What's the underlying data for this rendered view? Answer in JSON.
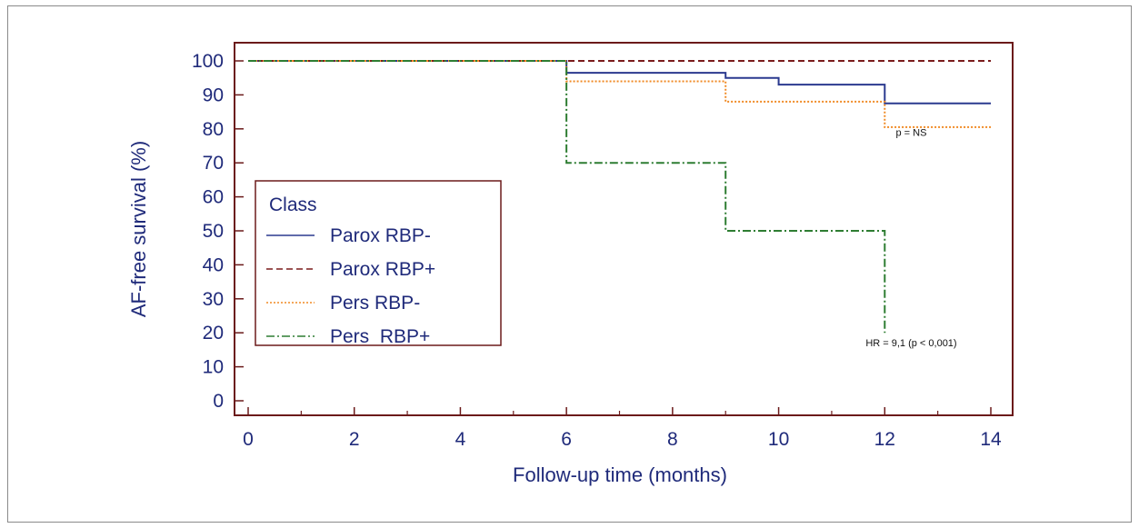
{
  "chart_data": {
    "type": "line",
    "subtype": "step",
    "xlabel": "Follow-up time (months)",
    "ylabel": "AF-free survival (%)",
    "xlim": [
      0,
      14
    ],
    "ylim": [
      0,
      100
    ],
    "xticks": [
      0,
      2,
      4,
      6,
      8,
      10,
      12,
      14
    ],
    "yticks": [
      0,
      10,
      20,
      30,
      40,
      50,
      60,
      70,
      80,
      90,
      100
    ],
    "grid": false,
    "legend": {
      "title": "Class",
      "placement": "middle-left"
    },
    "series": [
      {
        "name": "Parox RBP-",
        "color": "#2b3a8f",
        "dash": "solid",
        "x": [
          0,
          6,
          9,
          10,
          12,
          14
        ],
        "y": [
          100,
          96.5,
          95,
          93,
          87.5,
          87.5
        ]
      },
      {
        "name": "Parox RBP+",
        "color": "#7a1c1c",
        "dash": "dashed",
        "x": [
          0,
          14
        ],
        "y": [
          100,
          100
        ]
      },
      {
        "name": "Pers RBP-",
        "color": "#f08a24",
        "dash": "dotted",
        "x": [
          0,
          6,
          9,
          12,
          14
        ],
        "y": [
          100,
          94,
          88,
          80.5,
          80.5
        ]
      },
      {
        "name": "Pers  RBP+",
        "color": "#2e7d32",
        "dash": "dashdot",
        "x": [
          0,
          6,
          9,
          12
        ],
        "y": [
          100,
          70,
          50,
          20
        ]
      }
    ],
    "annotations": [
      {
        "text": "p = NS",
        "x": 12.5,
        "y": 78
      },
      {
        "text": "HR = 9,1 (p < 0,001)",
        "x": 12.5,
        "y": 16
      }
    ]
  }
}
